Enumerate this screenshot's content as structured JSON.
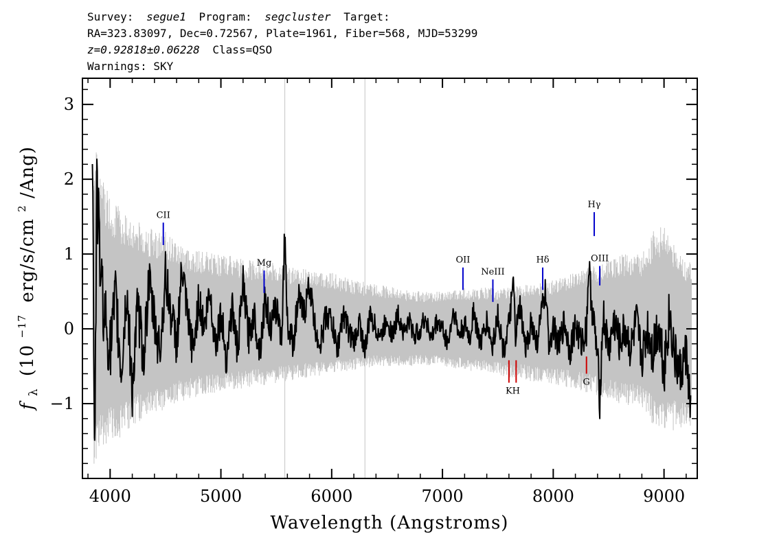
{
  "header": {
    "line1": {
      "survey_label": "Survey:",
      "survey": "segue1",
      "program_label": "Program:",
      "program": "segcluster",
      "target_label": "Target:"
    },
    "line2": "RA=323.83097, Dec=0.72567, Plate=1961, Fiber=568, MJD=53299",
    "line3": {
      "redshift": "z=0.92818±0.06228",
      "class": "Class=QSO"
    },
    "line4": "Warnings: SKY"
  },
  "chart_data": {
    "type": "line",
    "xlabel": "Wavelength (Angstroms)",
    "ylabel": {
      "symbol": "f",
      "subscript": "λ",
      "open": "(10",
      "exponent": "−17",
      "units": "erg/s/cm",
      "units_exp": "2",
      "close": "/Ang)"
    },
    "xlim": [
      3750,
      9300
    ],
    "ylim": [
      -2.0,
      3.35
    ],
    "x_ticks": [
      4000,
      5000,
      6000,
      7000,
      8000,
      9000
    ],
    "x_tick_labels": [
      "4000",
      "5000",
      "6000",
      "7000",
      "8000",
      "9000"
    ],
    "y_ticks": [
      -1,
      0,
      1,
      2,
      3
    ],
    "y_tick_labels": [
      "−1",
      "0",
      "1",
      "2",
      "3"
    ],
    "series": [
      {
        "role": "error",
        "color": "#c4c4c4",
        "x": [
          3850,
          3900,
          4000,
          4100,
          4200,
          4300,
          4400,
          4500,
          4600,
          4700,
          4800,
          5000,
          5200,
          5400,
          5600,
          5800,
          6000,
          6200,
          6400,
          6600,
          6800,
          7000,
          7200,
          7400,
          7600,
          7800,
          8000,
          8200,
          8400,
          8600,
          8800,
          8900,
          9000,
          9100,
          9200,
          9250
        ],
        "upper": [
          2.6,
          2.2,
          1.8,
          1.6,
          1.5,
          1.4,
          1.35,
          1.3,
          1.2,
          1.1,
          1.05,
          1.0,
          0.95,
          0.9,
          0.85,
          0.8,
          0.75,
          0.65,
          0.6,
          0.55,
          0.5,
          0.5,
          0.55,
          0.55,
          0.55,
          0.6,
          0.65,
          0.75,
          0.9,
          1.0,
          1.0,
          1.3,
          1.4,
          1.1,
          0.9,
          0.9
        ],
        "lower": [
          -1.9,
          -1.6,
          -1.5,
          -1.45,
          -1.3,
          -1.2,
          -1.15,
          -1.1,
          -1.0,
          -0.95,
          -0.9,
          -0.85,
          -0.8,
          -0.75,
          -0.7,
          -0.65,
          -0.6,
          -0.55,
          -0.5,
          -0.5,
          -0.5,
          -0.5,
          -0.55,
          -0.6,
          -0.65,
          -0.7,
          -0.75,
          -0.8,
          -0.9,
          -1.0,
          -1.05,
          -1.3,
          -1.4,
          -1.35,
          -1.3,
          -1.3
        ]
      },
      {
        "role": "flux",
        "color": "#000000",
        "x": [
          3840,
          3860,
          3880,
          3900,
          3920,
          3950,
          4000,
          4050,
          4100,
          4150,
          4200,
          4250,
          4300,
          4350,
          4400,
          4450,
          4500,
          4550,
          4600,
          4650,
          4700,
          4750,
          4800,
          4850,
          4900,
          4950,
          5000,
          5050,
          5100,
          5150,
          5200,
          5250,
          5300,
          5350,
          5400,
          5450,
          5500,
          5550,
          5577,
          5600,
          5650,
          5700,
          5750,
          5800,
          5850,
          5900,
          5950,
          6000,
          6050,
          6100,
          6150,
          6200,
          6250,
          6300,
          6350,
          6400,
          6450,
          6500,
          6550,
          6600,
          6650,
          6700,
          6750,
          6800,
          6850,
          6900,
          6950,
          7000,
          7050,
          7100,
          7150,
          7200,
          7250,
          7280,
          7300,
          7350,
          7400,
          7450,
          7500,
          7550,
          7600,
          7640,
          7660,
          7700,
          7750,
          7800,
          7850,
          7900,
          7930,
          7960,
          8000,
          8050,
          8100,
          8150,
          8200,
          8250,
          8300,
          8320,
          8350,
          8400,
          8420,
          8450,
          8500,
          8550,
          8600,
          8650,
          8700,
          8750,
          8800,
          8850,
          8900,
          8950,
          9000,
          9050,
          9100,
          9150,
          9200,
          9240
        ],
        "y": [
          2.4,
          -1.6,
          1.9,
          1.2,
          0.6,
          0.2,
          -0.3,
          0.4,
          -0.6,
          0.5,
          -0.8,
          0.3,
          -0.4,
          0.6,
          0.1,
          -0.3,
          0.7,
          0.2,
          -0.2,
          0.8,
          0.1,
          -0.3,
          0.4,
          0.0,
          0.5,
          -0.2,
          0.2,
          -0.4,
          0.3,
          -0.3,
          0.6,
          -0.1,
          0.2,
          -0.3,
          0.4,
          0.0,
          0.3,
          -0.1,
          1.35,
          0.1,
          -0.2,
          0.4,
          0.2,
          0.6,
          0.0,
          -0.2,
          0.2,
          0.1,
          -0.3,
          0.2,
          0.0,
          -0.2,
          0.1,
          -0.3,
          0.2,
          0.0,
          -0.1,
          0.15,
          -0.1,
          0.2,
          -0.05,
          0.1,
          -0.1,
          0.0,
          0.15,
          -0.15,
          0.1,
          0.0,
          -0.2,
          0.25,
          -0.1,
          0.05,
          -0.15,
          0.3,
          0.05,
          -0.2,
          0.1,
          -0.25,
          0.2,
          -0.3,
          0.05,
          0.6,
          -0.1,
          0.3,
          -0.3,
          0.1,
          -0.2,
          0.25,
          0.5,
          -0.2,
          0.05,
          -0.25,
          0.1,
          -0.3,
          0.05,
          -0.2,
          0.0,
          0.85,
          0.3,
          -0.4,
          -0.95,
          0.2,
          -0.3,
          0.1,
          -0.2,
          0.0,
          -0.3,
          0.1,
          -0.4,
          0.0,
          -0.3,
          0.1,
          -0.5,
          0.2,
          -0.4,
          -0.6,
          -0.3,
          -1.1
        ]
      }
    ],
    "lines": [
      {
        "label": "CII",
        "x": 4480,
        "y_top": 1.42,
        "y_bottom": 1.12,
        "color": "#0000cc",
        "label_side": "above"
      },
      {
        "label": "Mg",
        "x": 5390,
        "y_top": 0.78,
        "y_bottom": 0.48,
        "color": "#0000cc",
        "label_side": "above"
      },
      {
        "label": "OII",
        "x": 7185,
        "y_top": 0.82,
        "y_bottom": 0.52,
        "color": "#0000cc",
        "label_side": "above"
      },
      {
        "label": "NeIII",
        "x": 7455,
        "y_top": 0.66,
        "y_bottom": 0.36,
        "color": "#0000cc",
        "label_side": "above"
      },
      {
        "label": "Hδ",
        "x": 7905,
        "y_top": 0.82,
        "y_bottom": 0.52,
        "color": "#0000cc",
        "label_side": "above"
      },
      {
        "label": "Hγ",
        "x": 8370,
        "y_top": 1.56,
        "y_bottom": 1.24,
        "color": "#0000cc",
        "label_side": "above"
      },
      {
        "label": "OIII",
        "x": 8420,
        "y_top": 0.84,
        "y_bottom": 0.58,
        "color": "#0000cc",
        "label_side": "above"
      },
      {
        "label": "K",
        "x": 7600,
        "y_top": -0.42,
        "y_bottom": -0.72,
        "color": "#cc0000",
        "label_side": "below"
      },
      {
        "label": "H",
        "x": 7665,
        "y_top": -0.42,
        "y_bottom": -0.72,
        "color": "#cc0000",
        "label_side": "below"
      },
      {
        "label": "G",
        "x": 8300,
        "y_top": -0.37,
        "y_bottom": -0.6,
        "color": "#cc0000",
        "label_side": "below"
      }
    ],
    "sky_lines": [
      5577,
      6300
    ]
  }
}
